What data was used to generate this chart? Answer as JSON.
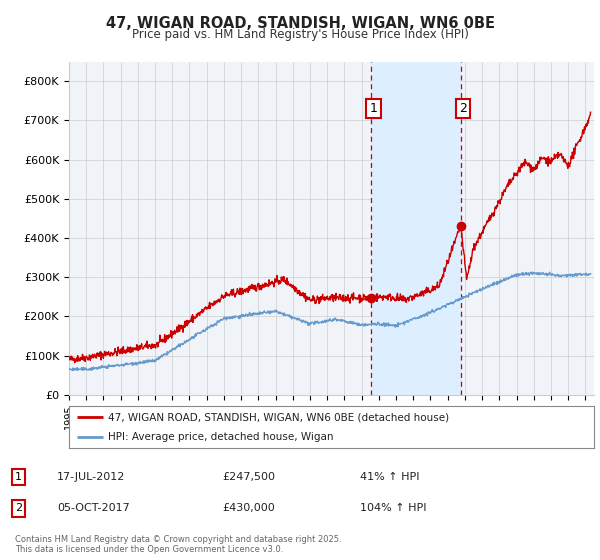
{
  "title": "47, WIGAN ROAD, STANDISH, WIGAN, WN6 0BE",
  "subtitle": "Price paid vs. HM Land Registry's House Price Index (HPI)",
  "red_label": "47, WIGAN ROAD, STANDISH, WIGAN, WN6 0BE (detached house)",
  "blue_label": "HPI: Average price, detached house, Wigan",
  "footer": "Contains HM Land Registry data © Crown copyright and database right 2025.\nThis data is licensed under the Open Government Licence v3.0.",
  "event1_date": "17-JUL-2012",
  "event1_price": "£247,500",
  "event1_hpi": "41% ↑ HPI",
  "event1_x": 2012.54,
  "event1_y_red": 247500,
  "event2_date": "05-OCT-2017",
  "event2_price": "£430,000",
  "event2_hpi": "104% ↑ HPI",
  "event2_x": 2017.76,
  "event2_y_red": 430000,
  "ylim": [
    0,
    850000
  ],
  "xlim": [
    1995.0,
    2025.5
  ],
  "yticks": [
    0,
    100000,
    200000,
    300000,
    400000,
    500000,
    600000,
    700000,
    800000
  ],
  "ytick_labels": [
    "£0",
    "£100K",
    "£200K",
    "£300K",
    "£400K",
    "£500K",
    "£600K",
    "£700K",
    "£800K"
  ],
  "xticks": [
    1995,
    1996,
    1997,
    1998,
    1999,
    2000,
    2001,
    2002,
    2003,
    2004,
    2005,
    2006,
    2007,
    2008,
    2009,
    2010,
    2011,
    2012,
    2013,
    2014,
    2015,
    2016,
    2017,
    2018,
    2019,
    2020,
    2021,
    2022,
    2023,
    2024,
    2025
  ],
  "shade_x1": 2012.54,
  "shade_x2": 2017.76,
  "red_color": "#cc0000",
  "blue_color": "#6699cc",
  "shade_color": "#ddeeff",
  "vline_color": "#cc0000",
  "grid_color": "#cccccc",
  "bg_color": "#ffffff",
  "plot_bg_color": "#f0f4f8"
}
